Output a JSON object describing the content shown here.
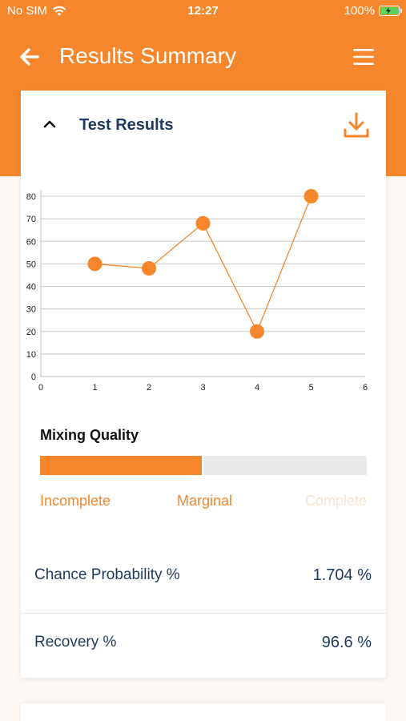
{
  "status_bar": {
    "carrier": "No SIM",
    "time": "12:27",
    "battery": "100%"
  },
  "header": {
    "title": "Results Summary"
  },
  "card": {
    "title": "Test Results"
  },
  "chart_data": {
    "type": "line",
    "x": [
      1,
      2,
      3,
      4,
      5
    ],
    "y": [
      50,
      48,
      68,
      20,
      80
    ],
    "xlim": [
      0,
      6
    ],
    "ylim": [
      0,
      80
    ],
    "xticks": [
      0,
      1,
      2,
      3,
      4,
      5,
      6
    ],
    "yticks": [
      0,
      10,
      20,
      30,
      40,
      50,
      60,
      70,
      80
    ],
    "grid": true,
    "color": "#f5862b"
  },
  "mixing_quality": {
    "title": "Mixing Quality",
    "level": 0.5,
    "labels": [
      "Incomplete",
      "Marginal",
      "Complete"
    ]
  },
  "results": {
    "chance_probability": {
      "label": "Chance Probability %",
      "value": "1.704 %"
    },
    "recovery": {
      "label": "Recovery %",
      "value": "96.6 %"
    }
  },
  "colors": {
    "accent": "#f5862b",
    "navy": "#1f3a5f"
  }
}
